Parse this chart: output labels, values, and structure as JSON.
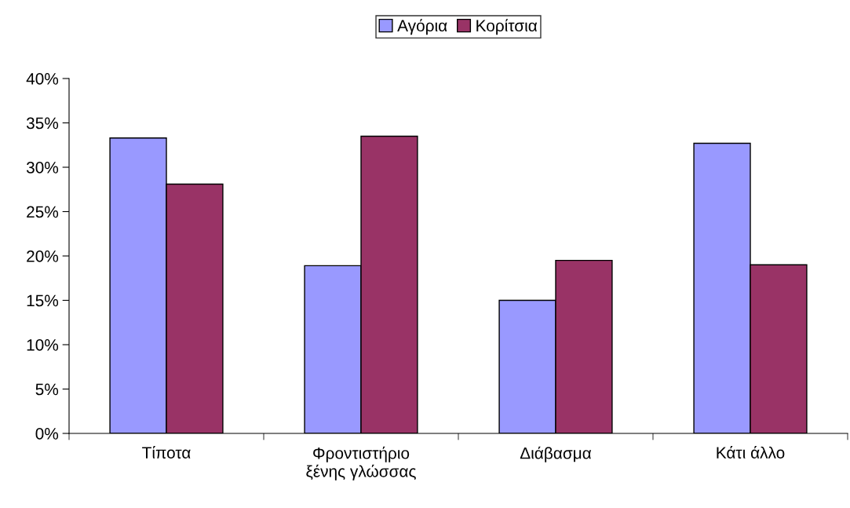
{
  "chart_data": {
    "type": "bar",
    "categories": [
      "Τίποτα",
      "Φροντιστήριο\nξένης γλώσσας",
      "Διάβασμα",
      "Κάτι άλλο"
    ],
    "series": [
      {
        "name": "Αγόρια",
        "color": "#9999ff",
        "values": [
          33.3,
          18.9,
          15.0,
          32.7
        ]
      },
      {
        "name": "Κορίτσια",
        "color": "#993366",
        "values": [
          28.1,
          33.5,
          19.5,
          19.0
        ]
      }
    ],
    "ylim": [
      0,
      40
    ],
    "yticks": [
      {
        "value": 0,
        "label": "0%"
      },
      {
        "value": 5,
        "label": "5%"
      },
      {
        "value": 10,
        "label": "10%"
      },
      {
        "value": 15,
        "label": "15%"
      },
      {
        "value": 20,
        "label": "20%"
      },
      {
        "value": 25,
        "label": "25%"
      },
      {
        "value": 30,
        "label": "30%"
      },
      {
        "value": 35,
        "label": "35%"
      },
      {
        "value": 40,
        "label": "40%"
      }
    ],
    "grid": false,
    "legend": "top"
  }
}
